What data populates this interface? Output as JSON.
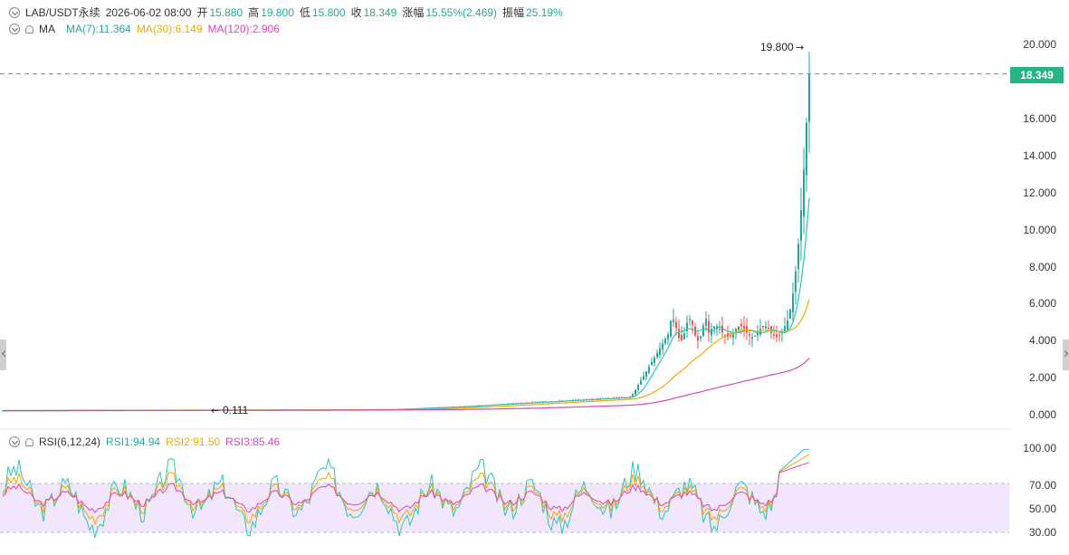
{
  "header": {
    "symbol": "LAB/USDT永续",
    "time": "2026-06-02 08:00",
    "open_label": "开",
    "open": "15.880",
    "high_label": "高",
    "high": "19.800",
    "low_label": "低",
    "low": "15.800",
    "close_label": "收",
    "close": "18.349",
    "change_label": "涨幅",
    "change": "15.55%(2.469)",
    "amp_label": "振幅",
    "amp": "25.19%"
  },
  "ma": {
    "label": "MA",
    "ma7": "MA(7):11.364",
    "ma30": "MA(30):6.149",
    "ma120": "MA(120):2.906"
  },
  "rsi": {
    "label": "RSI(6,12,24)",
    "rsi1": "RSI1:94.94",
    "rsi2": "RSI2:91.50",
    "rsi3": "RSI3:85.46",
    "axis": [
      "100.00",
      "70.00",
      "50.00",
      "30.00"
    ]
  },
  "price_axis": [
    "20.000",
    "18.000",
    "16.000",
    "14.000",
    "12.000",
    "10.000",
    "8.000",
    "6.000",
    "4.000",
    "2.000",
    "0.000"
  ],
  "current_price": "18.349",
  "high_marker": "19.800",
  "low_marker": "0.111",
  "colors": {
    "up": "#26a69a",
    "down": "#ef5350",
    "ma7": "#2ec4b6",
    "ma30": "#f0a800",
    "ma120": "#d846b5",
    "rsi_band": "#f1e6fb"
  }
}
